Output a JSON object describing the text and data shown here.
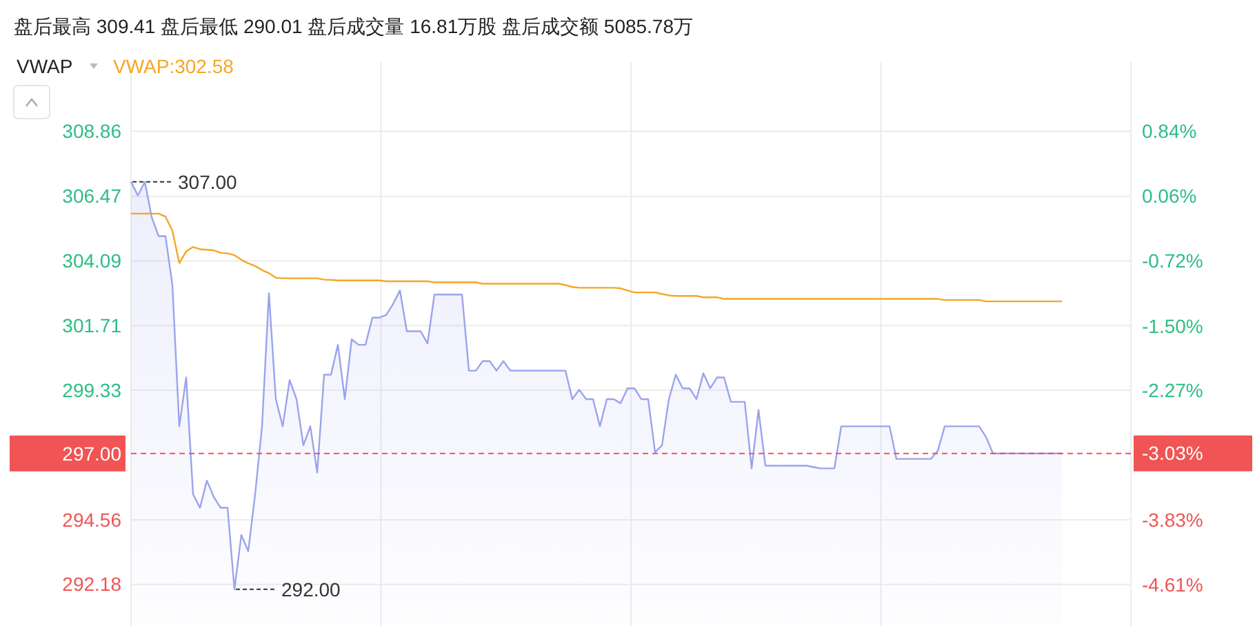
{
  "chart_data": {
    "type": "line",
    "title": "盘后最高 309.41 盘后最低 290.01 盘后成交量 16.81万股 盘后成交额 5085.78万",
    "subtitle": "VWAP",
    "categories": [
      null,
      null,
      null,
      null,
      null,
      null,
      null,
      null,
      null,
      null,
      null,
      null,
      null,
      null,
      null,
      null,
      null,
      null,
      null,
      null,
      null,
      null,
      null,
      null,
      null,
      null,
      null,
      null,
      null,
      null,
      null,
      null,
      null,
      null,
      null,
      null,
      null,
      null,
      null,
      null,
      null,
      null,
      null,
      null,
      null,
      null,
      null,
      null,
      null,
      null,
      null,
      null,
      null,
      null,
      null,
      null,
      null,
      null,
      null,
      null,
      null,
      null,
      null,
      null,
      null,
      null,
      null,
      null,
      null,
      null,
      null,
      null,
      null,
      null,
      null,
      null,
      null,
      null,
      null,
      null,
      null,
      null,
      null,
      null,
      null,
      null,
      null,
      null,
      null,
      null,
      null,
      null,
      null,
      null,
      null,
      null,
      null,
      null,
      null,
      null,
      null,
      null,
      null,
      null,
      null,
      null,
      null,
      null,
      null,
      null,
      null,
      null,
      null,
      null,
      null,
      null,
      null,
      null,
      null,
      null,
      null,
      null,
      null,
      null,
      null,
      null,
      null,
      null,
      null,
      null,
      null,
      null,
      null,
      null,
      null,
      null
    ],
    "series": [
      {
        "type": "area",
        "color": "#9aa3ee",
        "values": [
          307.0,
          306.5,
          307.0,
          305.7,
          305.0,
          305.0,
          303.2,
          298.0,
          299.8,
          295.5,
          295.0,
          296.0,
          295.4,
          295.0,
          295.0,
          292.0,
          294.0,
          293.4,
          295.5,
          298.0,
          302.9,
          299.0,
          298.0,
          299.7,
          299.0,
          297.3,
          298.0,
          296.3,
          299.9,
          299.9,
          301.0,
          299.0,
          301.2,
          301.0,
          301.0,
          302.0,
          302.0,
          302.1,
          302.5,
          303.0,
          301.5,
          301.5,
          301.5,
          301.05,
          302.85,
          302.85,
          302.85,
          302.85,
          302.85,
          300.05,
          300.05,
          300.4,
          300.4,
          300.05,
          300.4,
          300.05,
          300.05,
          300.05,
          300.05,
          300.05,
          300.05,
          300.05,
          300.05,
          300.05,
          299.0,
          299.35,
          299.0,
          299.0,
          298.0,
          299.0,
          299.0,
          298.85,
          299.4,
          299.4,
          299.0,
          299.0,
          297.05,
          297.3,
          299.0,
          299.9,
          299.4,
          299.4,
          299.0,
          299.95,
          299.4,
          299.8,
          299.8,
          298.9,
          298.9,
          298.9,
          296.45,
          298.6,
          296.55,
          296.55,
          296.55,
          296.55,
          296.55,
          296.55,
          296.55,
          296.5,
          296.45,
          296.45,
          296.45,
          298.0,
          298.0,
          298.0,
          298.0,
          298.0,
          298.0,
          298.0,
          298.0,
          296.8,
          296.8,
          296.8,
          296.8,
          296.8,
          296.8,
          297.1,
          298.0,
          298.0,
          298.0,
          298.0,
          298.0,
          298.0,
          297.6,
          297.0,
          297.0,
          297.0,
          297.0,
          297.0,
          297.0,
          297.0,
          297.0,
          297.0,
          297.0,
          297.0
        ]
      },
      {
        "name": "VWAP:302.58",
        "color": "#f5a623",
        "values": [
          305.83,
          305.83,
          305.83,
          305.83,
          305.83,
          305.72,
          305.2,
          304.01,
          304.44,
          304.6,
          304.52,
          304.5,
          304.48,
          304.39,
          304.37,
          304.3,
          304.13,
          304.0,
          303.9,
          303.75,
          303.64,
          303.47,
          303.45,
          303.45,
          303.45,
          303.45,
          303.45,
          303.45,
          303.4,
          303.39,
          303.37,
          303.37,
          303.37,
          303.37,
          303.37,
          303.37,
          303.37,
          303.34,
          303.34,
          303.34,
          303.34,
          303.34,
          303.34,
          303.34,
          303.3,
          303.3,
          303.3,
          303.3,
          303.3,
          303.3,
          303.3,
          303.25,
          303.25,
          303.25,
          303.25,
          303.25,
          303.25,
          303.25,
          303.25,
          303.25,
          303.25,
          303.25,
          303.25,
          303.2,
          303.13,
          303.1,
          303.1,
          303.1,
          303.1,
          303.1,
          303.1,
          303.08,
          303.0,
          302.93,
          302.93,
          302.93,
          302.93,
          302.87,
          302.82,
          302.8,
          302.8,
          302.8,
          302.8,
          302.75,
          302.75,
          302.75,
          302.69,
          302.69,
          302.69,
          302.69,
          302.69,
          302.69,
          302.69,
          302.69,
          302.69,
          302.69,
          302.69,
          302.69,
          302.69,
          302.69,
          302.69,
          302.69,
          302.69,
          302.69,
          302.69,
          302.69,
          302.69,
          302.69,
          302.69,
          302.69,
          302.69,
          302.69,
          302.69,
          302.69,
          302.69,
          302.69,
          302.69,
          302.69,
          302.65,
          302.65,
          302.65,
          302.65,
          302.65,
          302.65,
          302.6,
          302.6,
          302.6,
          302.6,
          302.6,
          302.6,
          302.6,
          302.6,
          302.6,
          302.6,
          302.6,
          302.6
        ]
      }
    ],
    "ylim": [
      290.75,
      311.41
    ],
    "yticks": [
      308.86,
      306.47,
      304.09,
      301.71,
      299.33,
      294.56,
      292.18
    ],
    "y2lim": [
      -5.07,
      1.67
    ],
    "y2ticks": [
      {
        "value": 0.84,
        "label": "0.84%"
      },
      {
        "value": 0.06,
        "label": "0.06%"
      },
      {
        "value": -0.72,
        "label": "-0.72%"
      },
      {
        "value": -1.5,
        "label": "-1.50%"
      },
      {
        "value": -2.27,
        "label": "-2.27%"
      },
      {
        "value": -3.03,
        "label": "-3.03%"
      },
      {
        "value": -3.83,
        "label": "-3.83%"
      },
      {
        "value": -4.61,
        "label": "-4.61%"
      }
    ],
    "ref_lines": [
      {
        "axis": "y",
        "value": 297.0,
        "label": "297.00",
        "color": "#f05454",
        "line_style": "dashed"
      }
    ],
    "annotations": [
      "307.00",
      "292.00"
    ],
    "grid": true,
    "legend": "top left",
    "marker": "none"
  }
}
